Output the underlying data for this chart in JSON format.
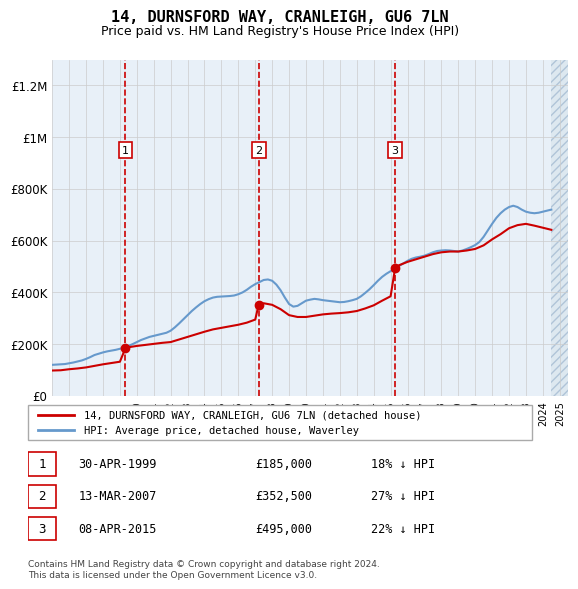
{
  "title": "14, DURNSFORD WAY, CRANLEIGH, GU6 7LN",
  "subtitle": "Price paid vs. HM Land Registry's House Price Index (HPI)",
  "x_start": 1995.0,
  "x_end": 2025.5,
  "y_min": 0,
  "y_max": 1300000,
  "y_ticks": [
    0,
    200000,
    400000,
    600000,
    800000,
    1000000,
    1200000
  ],
  "y_tick_labels": [
    "£0",
    "£200K",
    "£400K",
    "£600K",
    "£800K",
    "£1M",
    "£1.2M"
  ],
  "x_ticks": [
    1995,
    1996,
    1997,
    1998,
    1999,
    2000,
    2001,
    2002,
    2003,
    2004,
    2005,
    2006,
    2007,
    2008,
    2009,
    2010,
    2011,
    2012,
    2013,
    2014,
    2015,
    2016,
    2017,
    2018,
    2019,
    2020,
    2021,
    2022,
    2023,
    2024,
    2025
  ],
  "background_color": "#e8f0f8",
  "hatch_color": "#c8d8e8",
  "grid_color": "#cccccc",
  "red_line_color": "#cc0000",
  "blue_line_color": "#6699cc",
  "sale_marker_color": "#cc0000",
  "dashed_line_color": "#cc0000",
  "transaction_box_color": "#cc0000",
  "sales": [
    {
      "num": 1,
      "date": "30-APR-1999",
      "year": 1999.33,
      "price": 185000,
      "pct": "18%",
      "dir": "↓"
    },
    {
      "num": 2,
      "date": "13-MAR-2007",
      "year": 2007.2,
      "price": 352500,
      "pct": "27%",
      "dir": "↓"
    },
    {
      "num": 3,
      "date": "08-APR-2015",
      "year": 2015.27,
      "price": 495000,
      "pct": "22%",
      "dir": "↓"
    }
  ],
  "legend_label_red": "14, DURNSFORD WAY, CRANLEIGH, GU6 7LN (detached house)",
  "legend_label_blue": "HPI: Average price, detached house, Waverley",
  "footnote": "Contains HM Land Registry data © Crown copyright and database right 2024.\nThis data is licensed under the Open Government Licence v3.0.",
  "hpi_data": {
    "years": [
      1995.0,
      1995.25,
      1995.5,
      1995.75,
      1996.0,
      1996.25,
      1996.5,
      1996.75,
      1997.0,
      1997.25,
      1997.5,
      1997.75,
      1998.0,
      1998.25,
      1998.5,
      1998.75,
      1999.0,
      1999.25,
      1999.5,
      1999.75,
      2000.0,
      2000.25,
      2000.5,
      2000.75,
      2001.0,
      2001.25,
      2001.5,
      2001.75,
      2002.0,
      2002.25,
      2002.5,
      2002.75,
      2003.0,
      2003.25,
      2003.5,
      2003.75,
      2004.0,
      2004.25,
      2004.5,
      2004.75,
      2005.0,
      2005.25,
      2005.5,
      2005.75,
      2006.0,
      2006.25,
      2006.5,
      2006.75,
      2007.0,
      2007.25,
      2007.5,
      2007.75,
      2008.0,
      2008.25,
      2008.5,
      2008.75,
      2009.0,
      2009.25,
      2009.5,
      2009.75,
      2010.0,
      2010.25,
      2010.5,
      2010.75,
      2011.0,
      2011.25,
      2011.5,
      2011.75,
      2012.0,
      2012.25,
      2012.5,
      2012.75,
      2013.0,
      2013.25,
      2013.5,
      2013.75,
      2014.0,
      2014.25,
      2014.5,
      2014.75,
      2015.0,
      2015.25,
      2015.5,
      2015.75,
      2016.0,
      2016.25,
      2016.5,
      2016.75,
      2017.0,
      2017.25,
      2017.5,
      2017.75,
      2018.0,
      2018.25,
      2018.5,
      2018.75,
      2019.0,
      2019.25,
      2019.5,
      2019.75,
      2020.0,
      2020.25,
      2020.5,
      2020.75,
      2021.0,
      2021.25,
      2021.5,
      2021.75,
      2022.0,
      2022.25,
      2022.5,
      2022.75,
      2023.0,
      2023.25,
      2023.5,
      2023.75,
      2024.0,
      2024.25,
      2024.5
    ],
    "values": [
      120000,
      121000,
      122000,
      123000,
      126000,
      129000,
      133000,
      137000,
      143000,
      150000,
      158000,
      163000,
      168000,
      172000,
      175000,
      178000,
      182000,
      187000,
      193000,
      200000,
      208000,
      216000,
      222000,
      228000,
      232000,
      236000,
      240000,
      244000,
      252000,
      265000,
      280000,
      296000,
      312000,
      328000,
      342000,
      355000,
      366000,
      374000,
      380000,
      383000,
      384000,
      385000,
      386000,
      388000,
      393000,
      400000,
      410000,
      422000,
      432000,
      440000,
      448000,
      450000,
      445000,
      430000,
      408000,
      380000,
      355000,
      345000,
      348000,
      358000,
      368000,
      372000,
      375000,
      373000,
      370000,
      368000,
      366000,
      364000,
      362000,
      363000,
      366000,
      370000,
      375000,
      385000,
      398000,
      412000,
      428000,
      445000,
      460000,
      472000,
      482000,
      492000,
      502000,
      512000,
      522000,
      530000,
      535000,
      538000,
      542000,
      548000,
      555000,
      560000,
      562000,
      563000,
      562000,
      560000,
      558000,
      562000,
      568000,
      575000,
      583000,
      595000,
      615000,
      640000,
      665000,
      688000,
      706000,
      720000,
      730000,
      735000,
      730000,
      720000,
      712000,
      708000,
      706000,
      708000,
      712000,
      716000,
      720000
    ]
  },
  "red_line_data": {
    "years": [
      1995.0,
      1995.5,
      1996.0,
      1996.5,
      1997.0,
      1997.5,
      1998.0,
      1998.5,
      1999.0,
      1999.33,
      1999.5,
      2000.0,
      2000.5,
      2001.0,
      2001.5,
      2002.0,
      2002.5,
      2003.0,
      2003.5,
      2004.0,
      2004.5,
      2005.0,
      2005.5,
      2006.0,
      2006.5,
      2007.0,
      2007.2,
      2007.5,
      2008.0,
      2008.5,
      2009.0,
      2009.5,
      2010.0,
      2010.5,
      2011.0,
      2011.5,
      2012.0,
      2012.5,
      2013.0,
      2013.5,
      2014.0,
      2014.5,
      2015.0,
      2015.27,
      2015.5,
      2016.0,
      2016.5,
      2017.0,
      2017.5,
      2018.0,
      2018.5,
      2019.0,
      2019.5,
      2020.0,
      2020.5,
      2021.0,
      2021.5,
      2022.0,
      2022.5,
      2023.0,
      2023.5,
      2024.0,
      2024.5
    ],
    "values": [
      98000,
      99000,
      103000,
      106000,
      110000,
      116000,
      122000,
      127000,
      132000,
      185000,
      188000,
      193000,
      197000,
      201000,
      205000,
      208000,
      218000,
      228000,
      238000,
      248000,
      257000,
      263000,
      269000,
      275000,
      283000,
      295000,
      352500,
      358000,
      352000,
      335000,
      312000,
      305000,
      305000,
      310000,
      315000,
      318000,
      320000,
      323000,
      328000,
      338000,
      350000,
      368000,
      385000,
      495000,
      505000,
      518000,
      528000,
      538000,
      548000,
      555000,
      558000,
      558000,
      562000,
      568000,
      582000,
      605000,
      625000,
      648000,
      660000,
      665000,
      658000,
      650000,
      642000
    ]
  }
}
